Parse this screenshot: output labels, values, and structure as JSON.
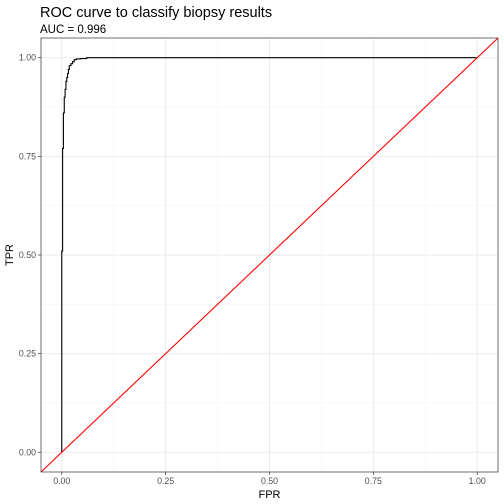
{
  "chart_data": {
    "type": "line",
    "title": "ROC curve to classify biopsy results",
    "subtitle": "AUC = 0.996",
    "xlabel": "FPR",
    "ylabel": "TPR",
    "xlim": [
      -0.05,
      1.05
    ],
    "ylim": [
      -0.05,
      1.05
    ],
    "x_ticks": [
      0.0,
      0.25,
      0.5,
      0.75,
      1.0
    ],
    "x_tick_labels": [
      "0.00",
      "0.25",
      "0.50",
      "0.75",
      "1.00"
    ],
    "y_ticks": [
      0.0,
      0.25,
      0.5,
      0.75,
      1.0
    ],
    "y_tick_labels": [
      "0.00",
      "0.25",
      "0.50",
      "0.75",
      "1.00"
    ],
    "grid": true,
    "series": [
      {
        "color": "#000000",
        "x": [
          0.0,
          0.0,
          0.002,
          0.002,
          0.004,
          0.004,
          0.006,
          0.006,
          0.008,
          0.008,
          0.01,
          0.01,
          0.012,
          0.012,
          0.014,
          0.014,
          0.016,
          0.016,
          0.018,
          0.018,
          0.022,
          0.022,
          0.026,
          0.026,
          0.03,
          0.03,
          0.035,
          0.035,
          0.045,
          0.045,
          0.06,
          0.06,
          1.0
        ],
        "y": [
          0.0,
          0.51,
          0.51,
          0.77,
          0.77,
          0.86,
          0.86,
          0.9,
          0.9,
          0.92,
          0.92,
          0.94,
          0.94,
          0.95,
          0.95,
          0.96,
          0.96,
          0.97,
          0.97,
          0.98,
          0.98,
          0.985,
          0.985,
          0.99,
          0.99,
          0.995,
          0.995,
          0.997,
          0.997,
          0.998,
          0.998,
          1.0,
          1.0
        ]
      },
      {
        "color": "#ff0000",
        "x": [
          -0.05,
          1.05
        ],
        "y": [
          -0.05,
          1.05
        ]
      }
    ]
  }
}
